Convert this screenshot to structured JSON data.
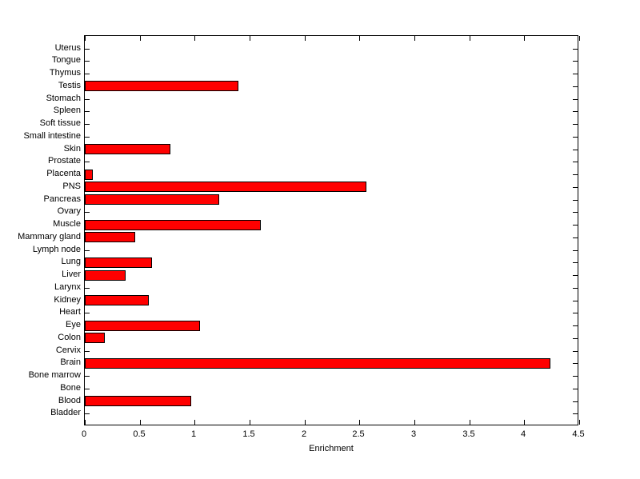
{
  "figure": {
    "background": "#ffffff"
  },
  "chart_data": {
    "type": "bar",
    "orientation": "horizontal",
    "title": "",
    "xlabel": "Enrichment",
    "ylabel": "",
    "xlim": [
      0,
      4.5
    ],
    "grid": false,
    "legend": null,
    "bar_color": "#ff0000",
    "bar_edge_color": "#000000",
    "axis_color": "#000000",
    "xticks": [
      0,
      0.5,
      1,
      1.5,
      2,
      2.5,
      3,
      3.5,
      4,
      4.5
    ],
    "xtick_labels": [
      "0",
      "0.5",
      "1",
      "1.5",
      "2",
      "2.5",
      "3",
      "3.5",
      "4",
      "4.5"
    ],
    "categories": [
      "Uterus",
      "Tongue",
      "Thymus",
      "Testis",
      "Stomach",
      "Spleen",
      "Soft tissue",
      "Small intestine",
      "Skin",
      "Prostate",
      "Placenta",
      "PNS",
      "Pancreas",
      "Ovary",
      "Muscle",
      "Mammary gland",
      "Lymph node",
      "Lung",
      "Liver",
      "Larynx",
      "Kidney",
      "Heart",
      "Eye",
      "Colon",
      "Cervix",
      "Brain",
      "Bone marrow",
      "Bone",
      "Blood",
      "Bladder"
    ],
    "values": [
      0,
      0,
      0,
      1.4,
      0,
      0,
      0,
      0,
      0.78,
      0,
      0.07,
      2.56,
      1.22,
      0,
      1.6,
      0.46,
      0,
      0.61,
      0.37,
      0,
      0.58,
      0,
      1.05,
      0.18,
      0,
      4.24,
      0,
      0,
      0.97,
      0
    ]
  }
}
